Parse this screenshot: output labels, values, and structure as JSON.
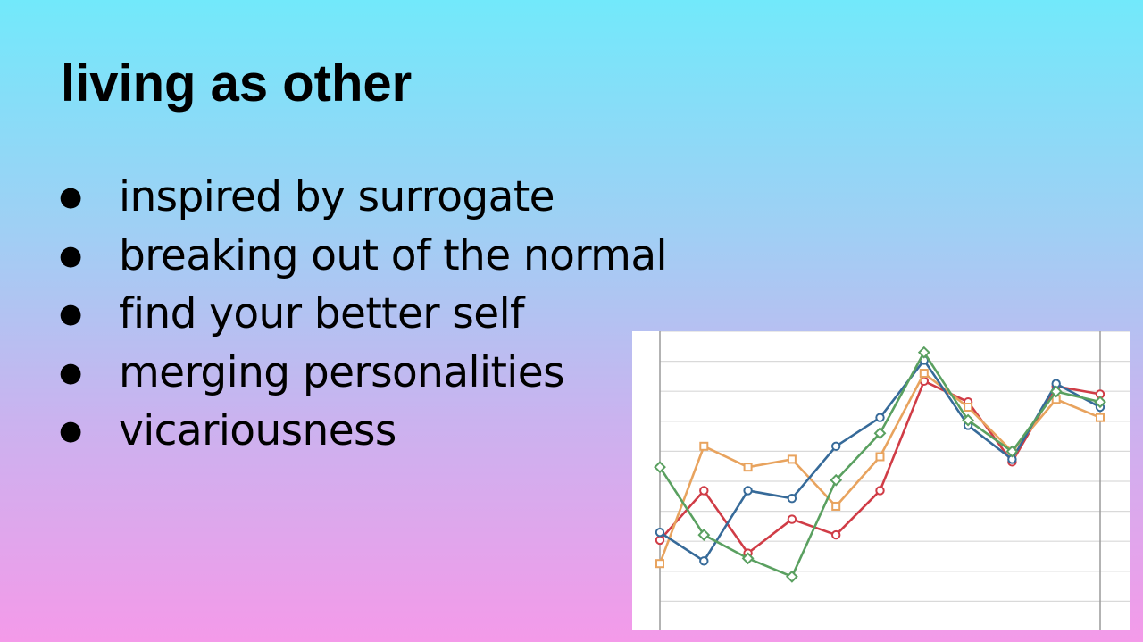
{
  "slide": {
    "title": "living as other",
    "bullet_glyph": "●",
    "bullets": [
      "inspired by surrogate",
      "breaking out of the normal",
      "find your better self",
      "merging personalities",
      "vicariousness"
    ]
  },
  "chart_data": {
    "type": "line",
    "title": "",
    "xlabel": "",
    "ylabel": "",
    "x": [
      1,
      2,
      3,
      4,
      5,
      6,
      7,
      8,
      9,
      10,
      11
    ],
    "ylim": [
      0,
      100
    ],
    "grid": true,
    "legend": "none",
    "series": [
      {
        "color": "#d03c46",
        "marker": "circle",
        "values": [
          24,
          43,
          19,
          32,
          26,
          43,
          85,
          77,
          54,
          83,
          80
        ]
      },
      {
        "color": "#e8a35e",
        "marker": "square",
        "values": [
          15,
          60,
          52,
          55,
          37,
          56,
          88,
          75,
          58,
          78,
          71
        ]
      },
      {
        "color": "#366a99",
        "marker": "circle",
        "values": [
          27,
          16,
          43,
          40,
          60,
          71,
          93,
          68,
          55,
          84,
          75
        ]
      },
      {
        "color": "#5aa060",
        "marker": "diamond",
        "values": [
          52,
          26,
          17,
          10,
          47,
          65,
          96,
          70,
          58,
          81,
          77
        ]
      }
    ]
  }
}
